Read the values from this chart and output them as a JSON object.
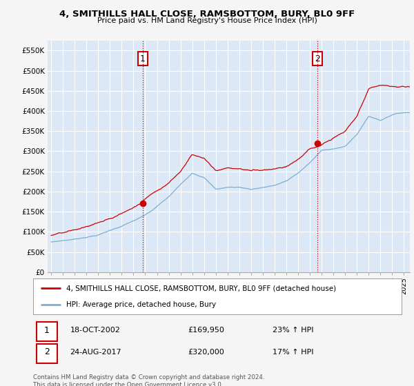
{
  "title": "4, SMITHILLS HALL CLOSE, RAMSBOTTOM, BURY, BL0 9FF",
  "subtitle": "Price paid vs. HM Land Registry's House Price Index (HPI)",
  "ylim": [
    0,
    575000
  ],
  "sale1_year": 2002.8,
  "sale1_price": 169950,
  "sale2_year": 2017.65,
  "sale2_price": 320000,
  "sale1_date": "18-OCT-2002",
  "sale1_amount": "£169,950",
  "sale1_hpi": "23% ↑ HPI",
  "sale2_date": "24-AUG-2017",
  "sale2_amount": "£320,000",
  "sale2_hpi": "17% ↑ HPI",
  "red_color": "#cc0000",
  "blue_color": "#7bafd4",
  "background_color": "#f5f5f5",
  "plot_bg_color": "#dce8f5",
  "grid_color": "#ffffff",
  "legend_label_red": "4, SMITHILLS HALL CLOSE, RAMSBOTTOM, BURY, BL0 9FF (detached house)",
  "legend_label_blue": "HPI: Average price, detached house, Bury",
  "footnote": "Contains HM Land Registry data © Crown copyright and database right 2024.\nThis data is licensed under the Open Government Licence v3.0.",
  "xmin": 1995,
  "xmax": 2025
}
